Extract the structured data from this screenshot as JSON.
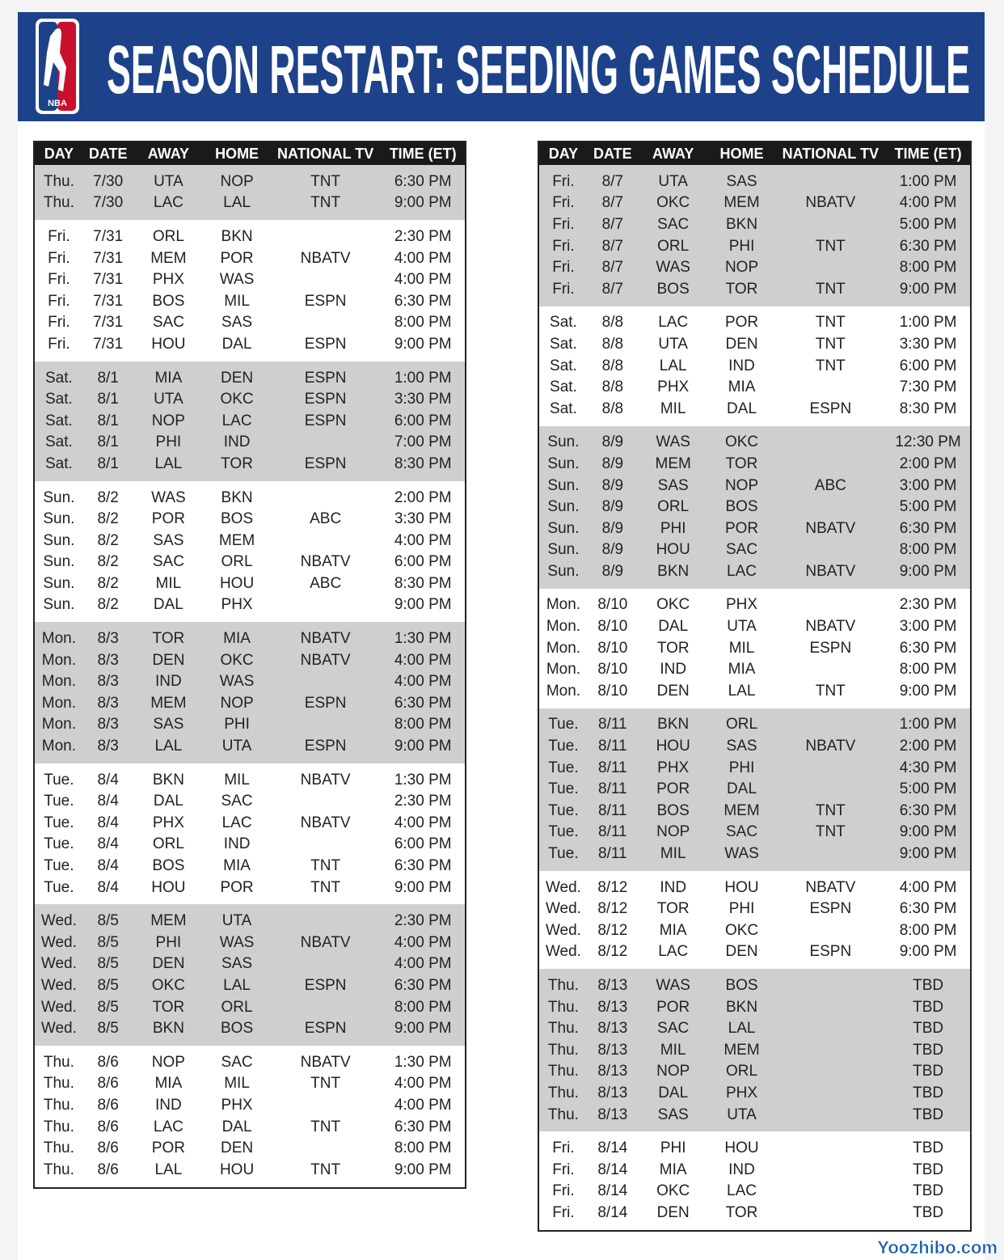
{
  "header": {
    "logo": "NBA",
    "title": "SEASON RESTART: SEEDING GAMES SCHEDULE"
  },
  "tables": [
    {
      "columns": [
        "DAY",
        "DATE",
        "AWAY",
        "HOME",
        "NATIONAL TV",
        "TIME (ET)"
      ],
      "groups": [
        {
          "rows": [
            [
              "Thu.",
              "7/30",
              "UTA",
              "NOP",
              "TNT",
              "6:30 PM"
            ],
            [
              "Thu.",
              "7/30",
              "LAC",
              "LAL",
              "TNT",
              "9:00 PM"
            ]
          ]
        },
        {
          "rows": [
            [
              "Fri.",
              "7/31",
              "ORL",
              "BKN",
              null,
              "2:30 PM"
            ],
            [
              "Fri.",
              "7/31",
              "MEM",
              "POR",
              "NBATV",
              "4:00 PM"
            ],
            [
              "Fri.",
              "7/31",
              "PHX",
              "WAS",
              null,
              "4:00 PM"
            ],
            [
              "Fri.",
              "7/31",
              "BOS",
              "MIL",
              "ESPN",
              "6:30 PM"
            ],
            [
              "Fri.",
              "7/31",
              "SAC",
              "SAS",
              null,
              "8:00 PM"
            ],
            [
              "Fri.",
              "7/31",
              "HOU",
              "DAL",
              "ESPN",
              "9:00 PM"
            ]
          ]
        },
        {
          "rows": [
            [
              "Sat.",
              "8/1",
              "MIA",
              "DEN",
              "ESPN",
              "1:00 PM"
            ],
            [
              "Sat.",
              "8/1",
              "UTA",
              "OKC",
              "ESPN",
              "3:30 PM"
            ],
            [
              "Sat.",
              "8/1",
              "NOP",
              "LAC",
              "ESPN",
              "6:00 PM"
            ],
            [
              "Sat.",
              "8/1",
              "PHI",
              "IND",
              null,
              "7:00 PM"
            ],
            [
              "Sat.",
              "8/1",
              "LAL",
              "TOR",
              "ESPN",
              "8:30 PM"
            ]
          ]
        },
        {
          "rows": [
            [
              "Sun.",
              "8/2",
              "WAS",
              "BKN",
              null,
              "2:00 PM"
            ],
            [
              "Sun.",
              "8/2",
              "POR",
              "BOS",
              "ABC",
              "3:30 PM"
            ],
            [
              "Sun.",
              "8/2",
              "SAS",
              "MEM",
              null,
              "4:00 PM"
            ],
            [
              "Sun.",
              "8/2",
              "SAC",
              "ORL",
              "NBATV",
              "6:00 PM"
            ],
            [
              "Sun.",
              "8/2",
              "MIL",
              "HOU",
              "ABC",
              "8:30 PM"
            ],
            [
              "Sun.",
              "8/2",
              "DAL",
              "PHX",
              null,
              "9:00 PM"
            ]
          ]
        },
        {
          "rows": [
            [
              "Mon.",
              "8/3",
              "TOR",
              "MIA",
              "NBATV",
              "1:30 PM"
            ],
            [
              "Mon.",
              "8/3",
              "DEN",
              "OKC",
              "NBATV",
              "4:00 PM"
            ],
            [
              "Mon.",
              "8/3",
              "IND",
              "WAS",
              null,
              "4:00 PM"
            ],
            [
              "Mon.",
              "8/3",
              "MEM",
              "NOP",
              "ESPN",
              "6:30 PM"
            ],
            [
              "Mon.",
              "8/3",
              "SAS",
              "PHI",
              null,
              "8:00 PM"
            ],
            [
              "Mon.",
              "8/3",
              "LAL",
              "UTA",
              "ESPN",
              "9:00 PM"
            ]
          ]
        },
        {
          "rows": [
            [
              "Tue.",
              "8/4",
              "BKN",
              "MIL",
              "NBATV",
              "1:30 PM"
            ],
            [
              "Tue.",
              "8/4",
              "DAL",
              "SAC",
              null,
              "2:30 PM"
            ],
            [
              "Tue.",
              "8/4",
              "PHX",
              "LAC",
              "NBATV",
              "4:00 PM"
            ],
            [
              "Tue.",
              "8/4",
              "ORL",
              "IND",
              null,
              "6:00 PM"
            ],
            [
              "Tue.",
              "8/4",
              "BOS",
              "MIA",
              "TNT",
              "6:30 PM"
            ],
            [
              "Tue.",
              "8/4",
              "HOU",
              "POR",
              "TNT",
              "9:00 PM"
            ]
          ]
        },
        {
          "rows": [
            [
              "Wed.",
              "8/5",
              "MEM",
              "UTA",
              null,
              "2:30 PM"
            ],
            [
              "Wed.",
              "8/5",
              "PHI",
              "WAS",
              "NBATV",
              "4:00 PM"
            ],
            [
              "Wed.",
              "8/5",
              "DEN",
              "SAS",
              null,
              "4:00 PM"
            ],
            [
              "Wed.",
              "8/5",
              "OKC",
              "LAL",
              "ESPN",
              "6:30 PM"
            ],
            [
              "Wed.",
              "8/5",
              "TOR",
              "ORL",
              null,
              "8:00 PM"
            ],
            [
              "Wed.",
              "8/5",
              "BKN",
              "BOS",
              "ESPN",
              "9:00 PM"
            ]
          ]
        },
        {
          "rows": [
            [
              "Thu.",
              "8/6",
              "NOP",
              "SAC",
              "NBATV",
              "1:30 PM"
            ],
            [
              "Thu.",
              "8/6",
              "MIA",
              "MIL",
              "TNT",
              "4:00 PM"
            ],
            [
              "Thu.",
              "8/6",
              "IND",
              "PHX",
              null,
              "4:00 PM"
            ],
            [
              "Thu.",
              "8/6",
              "LAC",
              "DAL",
              "TNT",
              "6:30 PM"
            ],
            [
              "Thu.",
              "8/6",
              "POR",
              "DEN",
              null,
              "8:00 PM"
            ],
            [
              "Thu.",
              "8/6",
              "LAL",
              "HOU",
              "TNT",
              "9:00 PM"
            ]
          ]
        }
      ]
    },
    {
      "columns": [
        "DAY",
        "DATE",
        "AWAY",
        "HOME",
        "NATIONAL TV",
        "TIME (ET)"
      ],
      "groups": [
        {
          "rows": [
            [
              "Fri.",
              "8/7",
              "UTA",
              "SAS",
              null,
              "1:00 PM"
            ],
            [
              "Fri.",
              "8/7",
              "OKC",
              "MEM",
              "NBATV",
              "4:00 PM"
            ],
            [
              "Fri.",
              "8/7",
              "SAC",
              "BKN",
              null,
              "5:00 PM"
            ],
            [
              "Fri.",
              "8/7",
              "ORL",
              "PHI",
              "TNT",
              "6:30 PM"
            ],
            [
              "Fri.",
              "8/7",
              "WAS",
              "NOP",
              null,
              "8:00 PM"
            ],
            [
              "Fri.",
              "8/7",
              "BOS",
              "TOR",
              "TNT",
              "9:00 PM"
            ]
          ]
        },
        {
          "rows": [
            [
              "Sat.",
              "8/8",
              "LAC",
              "POR",
              "TNT",
              "1:00 PM"
            ],
            [
              "Sat.",
              "8/8",
              "UTA",
              "DEN",
              "TNT",
              "3:30 PM"
            ],
            [
              "Sat.",
              "8/8",
              "LAL",
              "IND",
              "TNT",
              "6:00 PM"
            ],
            [
              "Sat.",
              "8/8",
              "PHX",
              "MIA",
              null,
              "7:30 PM"
            ],
            [
              "Sat.",
              "8/8",
              "MIL",
              "DAL",
              "ESPN",
              "8:30 PM"
            ]
          ]
        },
        {
          "rows": [
            [
              "Sun.",
              "8/9",
              "WAS",
              "OKC",
              null,
              "12:30 PM"
            ],
            [
              "Sun.",
              "8/9",
              "MEM",
              "TOR",
              null,
              "2:00 PM"
            ],
            [
              "Sun.",
              "8/9",
              "SAS",
              "NOP",
              "ABC",
              "3:00 PM"
            ],
            [
              "Sun.",
              "8/9",
              "ORL",
              "BOS",
              null,
              "5:00 PM"
            ],
            [
              "Sun.",
              "8/9",
              "PHI",
              "POR",
              "NBATV",
              "6:30 PM"
            ],
            [
              "Sun.",
              "8/9",
              "HOU",
              "SAC",
              null,
              "8:00 PM"
            ],
            [
              "Sun.",
              "8/9",
              "BKN",
              "LAC",
              "NBATV",
              "9:00 PM"
            ]
          ]
        },
        {
          "rows": [
            [
              "Mon.",
              "8/10",
              "OKC",
              "PHX",
              null,
              "2:30 PM"
            ],
            [
              "Mon.",
              "8/10",
              "DAL",
              "UTA",
              "NBATV",
              "3:00 PM"
            ],
            [
              "Mon.",
              "8/10",
              "TOR",
              "MIL",
              "ESPN",
              "6:30 PM"
            ],
            [
              "Mon.",
              "8/10",
              "IND",
              "MIA",
              null,
              "8:00 PM"
            ],
            [
              "Mon.",
              "8/10",
              "DEN",
              "LAL",
              "TNT",
              "9:00 PM"
            ]
          ]
        },
        {
          "rows": [
            [
              "Tue.",
              "8/11",
              "BKN",
              "ORL",
              null,
              "1:00 PM"
            ],
            [
              "Tue.",
              "8/11",
              "HOU",
              "SAS",
              "NBATV",
              "2:00 PM"
            ],
            [
              "Tue.",
              "8/11",
              "PHX",
              "PHI",
              null,
              "4:30 PM"
            ],
            [
              "Tue.",
              "8/11",
              "POR",
              "DAL",
              null,
              "5:00 PM"
            ],
            [
              "Tue.",
              "8/11",
              "BOS",
              "MEM",
              "TNT",
              "6:30 PM"
            ],
            [
              "Tue.",
              "8/11",
              "NOP",
              "SAC",
              "TNT",
              "9:00 PM"
            ],
            [
              "Tue.",
              "8/11",
              "MIL",
              "WAS",
              null,
              "9:00 PM"
            ]
          ]
        },
        {
          "rows": [
            [
              "Wed.",
              "8/12",
              "IND",
              "HOU",
              "NBATV",
              "4:00 PM"
            ],
            [
              "Wed.",
              "8/12",
              "TOR",
              "PHI",
              "ESPN",
              "6:30 PM"
            ],
            [
              "Wed.",
              "8/12",
              "MIA",
              "OKC",
              null,
              "8:00 PM"
            ],
            [
              "Wed.",
              "8/12",
              "LAC",
              "DEN",
              "ESPN",
              "9:00 PM"
            ]
          ]
        },
        {
          "rows": [
            [
              "Thu.",
              "8/13",
              "WAS",
              "BOS",
              null,
              "TBD"
            ],
            [
              "Thu.",
              "8/13",
              "POR",
              "BKN",
              null,
              "TBD"
            ],
            [
              "Thu.",
              "8/13",
              "SAC",
              "LAL",
              null,
              "TBD"
            ],
            [
              "Thu.",
              "8/13",
              "MIL",
              "MEM",
              null,
              "TBD"
            ],
            [
              "Thu.",
              "8/13",
              "NOP",
              "ORL",
              null,
              "TBD"
            ],
            [
              "Thu.",
              "8/13",
              "DAL",
              "PHX",
              null,
              "TBD"
            ],
            [
              "Thu.",
              "8/13",
              "SAS",
              "UTA",
              null,
              "TBD"
            ]
          ]
        },
        {
          "rows": [
            [
              "Fri.",
              "8/14",
              "PHI",
              "HOU",
              null,
              "TBD"
            ],
            [
              "Fri.",
              "8/14",
              "MIA",
              "IND",
              null,
              "TBD"
            ],
            [
              "Fri.",
              "8/14",
              "OKC",
              "LAC",
              null,
              "TBD"
            ],
            [
              "Fri.",
              "8/14",
              "DEN",
              "TOR",
              null,
              "TBD"
            ]
          ]
        }
      ]
    }
  ],
  "watermark": "Yoozhibo.com"
}
